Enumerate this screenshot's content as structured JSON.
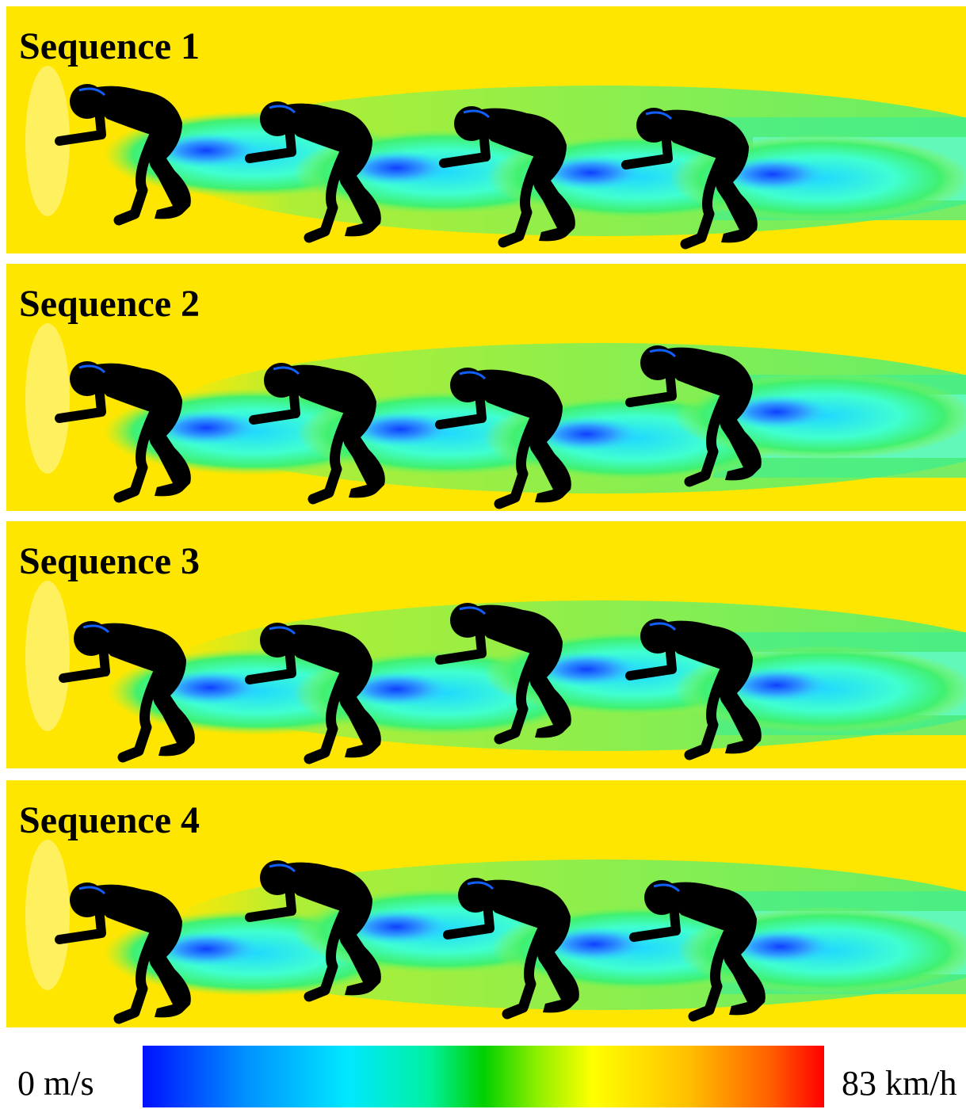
{
  "panels": [
    {
      "title": "Sequence 1"
    },
    {
      "title": "Sequence 2"
    },
    {
      "title": "Sequence 3"
    },
    {
      "title": "Sequence 4"
    }
  ],
  "colorbar": {
    "min_label": "0 m/s",
    "max_label": "83 km/h"
  }
}
